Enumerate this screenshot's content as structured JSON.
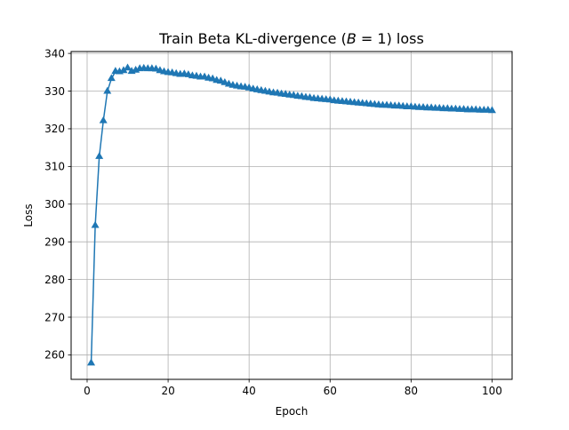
{
  "chart_data": {
    "type": "line",
    "title_main": "Train Beta KL-divergence (",
    "title_math_var": "B",
    "title_math_rest": " = 1)",
    "title_tail": " loss",
    "xlabel": "Epoch",
    "ylabel": "Loss",
    "xlim": [
      -3.95,
      104.95
    ],
    "ylim": [
      253.5,
      340.5
    ],
    "xticks": [
      0,
      20,
      40,
      60,
      80,
      100
    ],
    "yticks": [
      260,
      270,
      280,
      290,
      300,
      310,
      320,
      330,
      340
    ],
    "grid": true,
    "series": [
      {
        "color": "#1f77b4",
        "marker": "triangle-up",
        "x": [
          1,
          2,
          3,
          4,
          5,
          6,
          7,
          8,
          9,
          10,
          11,
          12,
          13,
          14,
          15,
          16,
          17,
          18,
          19,
          20,
          21,
          22,
          23,
          24,
          25,
          26,
          27,
          28,
          29,
          30,
          31,
          32,
          33,
          34,
          35,
          36,
          37,
          38,
          39,
          40,
          41,
          42,
          43,
          44,
          45,
          46,
          47,
          48,
          49,
          50,
          51,
          52,
          53,
          54,
          55,
          56,
          57,
          58,
          59,
          60,
          61,
          62,
          63,
          64,
          65,
          66,
          67,
          68,
          69,
          70,
          71,
          72,
          73,
          74,
          75,
          76,
          77,
          78,
          79,
          80,
          81,
          82,
          83,
          84,
          85,
          86,
          87,
          88,
          89,
          90,
          91,
          92,
          93,
          94,
          95,
          96,
          97,
          98,
          99,
          100
        ],
        "y": [
          257.8,
          294.3,
          312.6,
          322.1,
          329.9,
          333.3,
          335.2,
          335.1,
          335.4,
          336.1,
          335.2,
          335.5,
          335.9,
          336.0,
          335.9,
          335.9,
          335.8,
          335.4,
          335.1,
          334.9,
          334.8,
          334.6,
          334.4,
          334.5,
          334.3,
          334.0,
          333.9,
          333.7,
          333.7,
          333.4,
          333.2,
          332.8,
          332.6,
          332.2,
          331.8,
          331.5,
          331.3,
          331.1,
          331.0,
          330.8,
          330.5,
          330.3,
          330.1,
          329.9,
          329.7,
          329.5,
          329.4,
          329.2,
          329.1,
          328.9,
          328.8,
          328.6,
          328.5,
          328.3,
          328.2,
          328.0,
          327.9,
          327.8,
          327.7,
          327.6,
          327.4,
          327.3,
          327.2,
          327.1,
          327.0,
          326.9,
          326.8,
          326.7,
          326.6,
          326.5,
          326.4,
          326.3,
          326.2,
          326.2,
          326.1,
          326.0,
          326.0,
          325.9,
          325.8,
          325.8,
          325.7,
          325.6,
          325.6,
          325.5,
          325.5,
          325.4,
          325.4,
          325.3,
          325.3,
          325.2,
          325.2,
          325.1,
          325.1,
          325.0,
          325.0,
          325.0,
          324.9,
          324.9,
          324.9,
          324.8
        ]
      }
    ]
  }
}
